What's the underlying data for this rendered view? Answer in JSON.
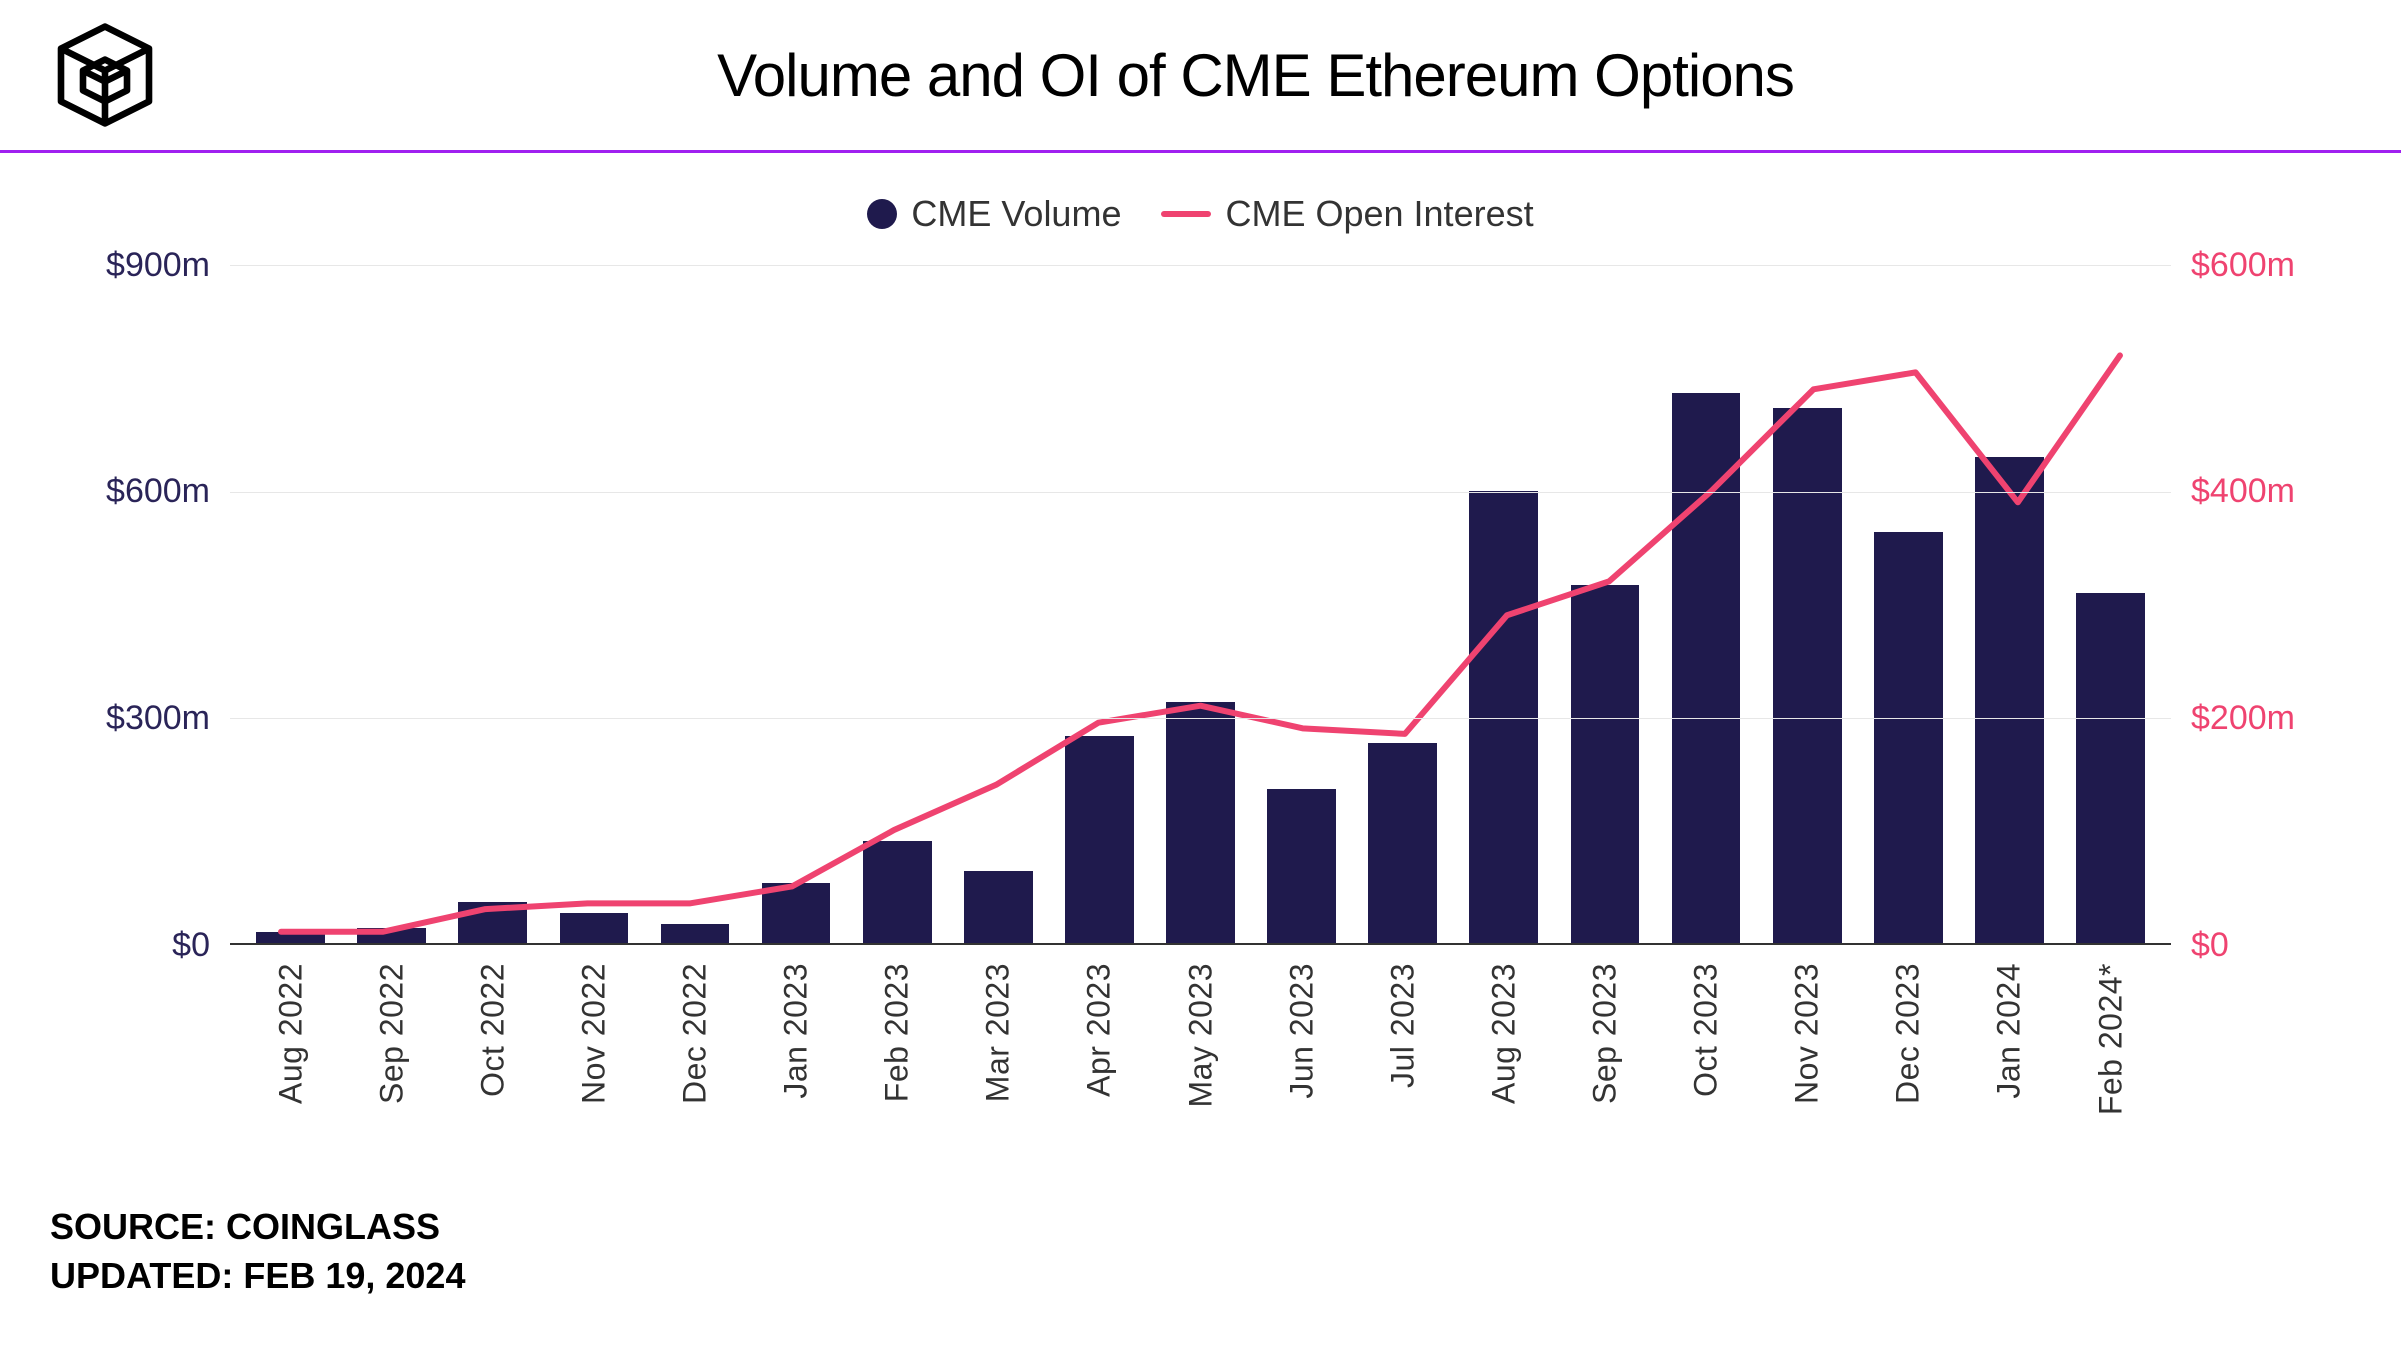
{
  "title": "Volume and OI of CME Ethereum Options",
  "accent_rule_color": "#a020f0",
  "legend": {
    "volume_label": "CME Volume",
    "oi_label": "CME Open Interest"
  },
  "footer": {
    "source_line": "SOURCE: COINGLASS",
    "updated_line": "UPDATED: FEB 19, 2024"
  },
  "chart": {
    "type": "bar_with_line",
    "background_color": "#ffffff",
    "grid_color": "#e7e7e7",
    "categories": [
      "Aug 2022",
      "Sep 2022",
      "Oct 2022",
      "Nov 2022",
      "Dec 2022",
      "Jan 2023",
      "Feb 2023",
      "Mar 2023",
      "Apr 2023",
      "May 2023",
      "Jun 2023",
      "Jul 2023",
      "Aug 2023",
      "Sep 2023",
      "Oct 2023",
      "Nov 2023",
      "Dec 2023",
      "Jan 2024",
      "Feb 2024*"
    ],
    "bar_series": {
      "name": "CME Volume",
      "color": "#1f1a4d",
      "values": [
        15,
        20,
        55,
        40,
        25,
        80,
        135,
        95,
        275,
        320,
        205,
        265,
        600,
        475,
        730,
        710,
        545,
        645,
        465
      ],
      "axis": "left"
    },
    "line_series": {
      "name": "CME Open Interest",
      "color": "#ef4370",
      "line_width": 6,
      "values": [
        10,
        10,
        30,
        35,
        35,
        50,
        100,
        140,
        195,
        210,
        190,
        185,
        290,
        320,
        400,
        490,
        505,
        390,
        520
      ],
      "axis": "right"
    },
    "y_left": {
      "min": 0,
      "max": 900,
      "step": 300,
      "ticks": [
        "$900m",
        "$600m",
        "$300m",
        "$0"
      ],
      "label_color": "#2a2458"
    },
    "y_right": {
      "min": 0,
      "max": 600,
      "step": 200,
      "ticks": [
        "$600m",
        "$400m",
        "$200m",
        "$0"
      ],
      "label_color": "#ef4370"
    },
    "x_label_fontsize": 32,
    "bar_width_ratio": 0.68
  }
}
